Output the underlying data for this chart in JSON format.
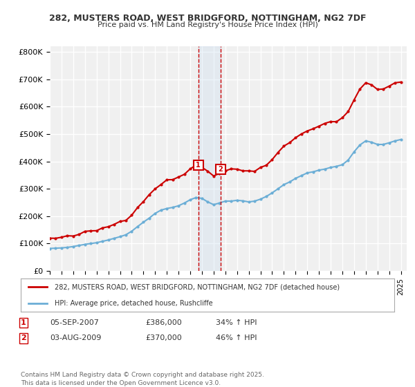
{
  "title": "282, MUSTERS ROAD, WEST BRIDGFORD, NOTTINGHAM, NG2 7DF",
  "subtitle": "Price paid vs. HM Land Registry's House Price Index (HPI)",
  "ylabel_ticks": [
    "£0",
    "£100K",
    "£200K",
    "£300K",
    "£400K",
    "£500K",
    "£600K",
    "£700K",
    "£800K"
  ],
  "ytick_values": [
    0,
    100000,
    200000,
    300000,
    400000,
    500000,
    600000,
    700000,
    800000
  ],
  "ylim": [
    0,
    820000
  ],
  "xlim_start": 1995.0,
  "xlim_end": 2025.5,
  "transaction1": {
    "date_float": 2007.68,
    "price": 386000,
    "label": "1",
    "date_str": "05-SEP-2007",
    "hpi_change": "34% ↑ HPI"
  },
  "transaction2": {
    "date_float": 2009.58,
    "price": 370000,
    "label": "2",
    "date_str": "03-AUG-2009",
    "hpi_change": "46% ↑ HPI"
  },
  "legend_house": "282, MUSTERS ROAD, WEST BRIDGFORD, NOTTINGHAM, NG2 7DF (detached house)",
  "legend_hpi": "HPI: Average price, detached house, Rushcliffe",
  "footer": "Contains HM Land Registry data © Crown copyright and database right 2025.\nThis data is licensed under the Open Government Licence v3.0.",
  "house_color": "#cc0000",
  "hpi_color": "#6baed6",
  "bg_color": "#ffffff",
  "plot_bg_color": "#f0f0f0",
  "grid_color": "#ffffff",
  "shade_color": "#c6dbef"
}
